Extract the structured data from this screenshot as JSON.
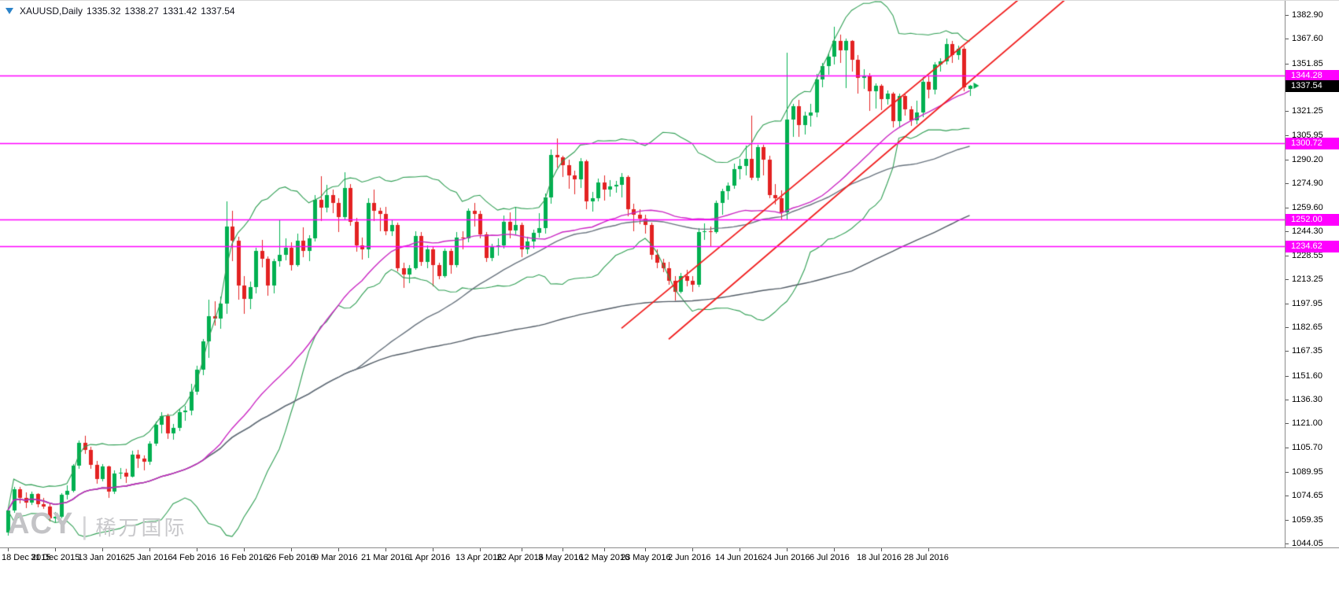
{
  "header": {
    "symbol": "XAUUSD,Daily",
    "open": "1335.32",
    "high": "1338.27",
    "low": "1331.42",
    "close": "1337.54"
  },
  "watermark": {
    "brand": "ACY",
    "separator": "|",
    "chinese": "稀万国际"
  },
  "axes": {
    "y_ticks": [
      "1382.90",
      "1367.60",
      "1351.85",
      "1321.25",
      "1305.95",
      "1290.20",
      "1274.90",
      "1259.60",
      "1244.30",
      "1228.55",
      "1213.25",
      "1197.95",
      "1182.65",
      "1167.35",
      "1151.60",
      "1136.30",
      "1121.00",
      "1105.70",
      "1089.95",
      "1074.65",
      "1059.35",
      "1044.05"
    ],
    "x_ticks": [
      {
        "label": "18 Dec 2015",
        "index": 0
      },
      {
        "label": "31 Dec 2015",
        "index": 8
      },
      {
        "label": "13 Jan 2016",
        "index": 16
      },
      {
        "label": "25 Jan 2016",
        "index": 24
      },
      {
        "label": "4 Feb 2016",
        "index": 32
      },
      {
        "label": "16 Feb 2016",
        "index": 40
      },
      {
        "label": "26 Feb 2016",
        "index": 48
      },
      {
        "label": "9 Mar 2016",
        "index": 56
      },
      {
        "label": "21 Mar 2016",
        "index": 64
      },
      {
        "label": "1 Apr 2016",
        "index": 72
      },
      {
        "label": "13 Apr 2016",
        "index": 80
      },
      {
        "label": "22 Apr 2016",
        "index": 87
      },
      {
        "label": "3 May 2016",
        "index": 94
      },
      {
        "label": "12 May 2016",
        "index": 101
      },
      {
        "label": "23 May 2016",
        "index": 108
      },
      {
        "label": "2 Jun 2016",
        "index": 116
      },
      {
        "label": "14 Jun 2016",
        "index": 124
      },
      {
        "label": "24 Jun 2016",
        "index": 132
      },
      {
        "label": "6 Jul 2016",
        "index": 140
      },
      {
        "label": "18 Jul 2016",
        "index": 148
      },
      {
        "label": "28 Jul 2016",
        "index": 156
      }
    ],
    "price_badges": [
      {
        "value": "1344.28",
        "price": 1344.28,
        "bg": "#FF00FF",
        "fg": "#FFFFFF",
        "name": "level-badge-1344"
      },
      {
        "value": "1337.54",
        "price": 1337.54,
        "bg": "#000000",
        "fg": "#FFFFFF",
        "name": "current-price-badge"
      },
      {
        "value": "1300.72",
        "price": 1300.72,
        "bg": "#FF00FF",
        "fg": "#FFFFFF",
        "name": "level-badge-1300"
      },
      {
        "value": "1252.00",
        "price": 1252.0,
        "bg": "#FF00FF",
        "fg": "#FFFFFF",
        "name": "level-badge-1252"
      },
      {
        "value": "1234.62",
        "price": 1234.62,
        "bg": "#FF00FF",
        "fg": "#FFFFFF",
        "name": "level-badge-1234"
      }
    ]
  },
  "chart_data": {
    "type": "candlestick",
    "symbol": "XAUUSD",
    "timeframe": "Daily",
    "title": "XAUUSD,Daily 1335.32 1338.27 1331.42 1337.54",
    "y_domain": [
      1041.5,
      1392.0
    ],
    "x_layout": {
      "start": 10,
      "step": 7.5,
      "body_width": 5
    },
    "colors": {
      "background": "#FFFFFF",
      "up": "#00B050",
      "down": "#E32222",
      "bollinger": "#2F9E53",
      "ma_magenta": "#CA27C3",
      "ma_gray_fast": "#68737E",
      "ma_gray_slow": "#525C66",
      "trend": "#F01D1D",
      "h_line": "#FF00FF",
      "axis_text": "#000000"
    },
    "indicators": {
      "bollinger": {
        "period": 20,
        "deviation": 2
      },
      "ma_magenta": {
        "type": "sma",
        "period": 34
      },
      "ma_gray_fast": {
        "type": "sma",
        "period": 60
      },
      "ma_gray_slow": {
        "type": "sma",
        "period": 144
      }
    },
    "trend_lines": [
      {
        "points": [
          [
            104,
            1182.0
          ],
          [
            195,
            1467.0
          ]
        ]
      },
      {
        "points": [
          [
            112,
            1175.0
          ],
          [
            195,
            1444.0
          ]
        ]
      }
    ],
    "h_lines": [
      {
        "price": 1344.28
      },
      {
        "price": 1300.72
      },
      {
        "price": 1252.0
      },
      {
        "price": 1234.62
      }
    ],
    "last_price_marker": {
      "price": 1337.54
    },
    "ohlc": [
      [
        1051.0,
        1066.8,
        1049.0,
        1065.2
      ],
      [
        1065.2,
        1080.5,
        1063.8,
        1078.6
      ],
      [
        1078.6,
        1080.2,
        1069.5,
        1073.3
      ],
      [
        1073.3,
        1076.8,
        1066.9,
        1070.1
      ],
      [
        1070.1,
        1077.2,
        1068.5,
        1075.6
      ],
      [
        1075.6,
        1076.4,
        1067.3,
        1069.2
      ],
      [
        1069.2,
        1073.1,
        1065.8,
        1067.7
      ],
      [
        1067.7,
        1069.8,
        1058.2,
        1060.4
      ],
      [
        1060.4,
        1064.3,
        1057.6,
        1061.3
      ],
      [
        1061.3,
        1076.2,
        1059.9,
        1075.1
      ],
      [
        1075.1,
        1081.3,
        1072.3,
        1077.9
      ],
      [
        1077.9,
        1094.8,
        1076.6,
        1093.9
      ],
      [
        1093.9,
        1110.2,
        1091.9,
        1108.8
      ],
      [
        1108.8,
        1113.1,
        1101.5,
        1104.2
      ],
      [
        1104.2,
        1106.3,
        1092.1,
        1094.3
      ],
      [
        1094.3,
        1096.9,
        1082.1,
        1085.6
      ],
      [
        1085.6,
        1095.1,
        1083.9,
        1093.4
      ],
      [
        1093.4,
        1094.2,
        1073.3,
        1077.4
      ],
      [
        1077.4,
        1091.0,
        1076.1,
        1088.7
      ],
      [
        1088.7,
        1092.5,
        1085.4,
        1089.4
      ],
      [
        1089.4,
        1091.8,
        1082.6,
        1087.1
      ],
      [
        1087.1,
        1103.4,
        1086.2,
        1101.2
      ],
      [
        1101.2,
        1104.1,
        1092.6,
        1098.3
      ],
      [
        1098.3,
        1100.4,
        1090.7,
        1096.6
      ],
      [
        1096.6,
        1109.7,
        1094.6,
        1108.2
      ],
      [
        1108.2,
        1122.4,
        1106.8,
        1120.3
      ],
      [
        1120.3,
        1128.1,
        1114.6,
        1125.6
      ],
      [
        1125.6,
        1127.3,
        1111.2,
        1114.4
      ],
      [
        1114.4,
        1120.7,
        1110.5,
        1118.1
      ],
      [
        1118.1,
        1130.4,
        1116.3,
        1128.2
      ],
      [
        1128.2,
        1132.1,
        1122.5,
        1129.1
      ],
      [
        1129.1,
        1146.4,
        1126.2,
        1141.4
      ],
      [
        1141.4,
        1157.9,
        1139.2,
        1155.3
      ],
      [
        1155.3,
        1175.0,
        1151.6,
        1173.6
      ],
      [
        1173.6,
        1200.6,
        1163.2,
        1189.6
      ],
      [
        1189.6,
        1199.1,
        1183.4,
        1188.4
      ],
      [
        1188.4,
        1202.2,
        1181.6,
        1197.6
      ],
      [
        1197.6,
        1263.5,
        1191.2,
        1247.3
      ],
      [
        1247.3,
        1257.5,
        1225.1,
        1238.4
      ],
      [
        1238.4,
        1240.6,
        1200.3,
        1209.6
      ],
      [
        1209.6,
        1215.6,
        1191.5,
        1201.1
      ],
      [
        1201.1,
        1211.9,
        1194.3,
        1208.4
      ],
      [
        1208.4,
        1233.6,
        1204.2,
        1231.4
      ],
      [
        1231.4,
        1238.9,
        1221.3,
        1226.6
      ],
      [
        1226.6,
        1228.2,
        1202.9,
        1209.4
      ],
      [
        1209.4,
        1226.4,
        1204.1,
        1225.1
      ],
      [
        1225.1,
        1251.2,
        1221.5,
        1229.3
      ],
      [
        1229.3,
        1239.6,
        1225.7,
        1233.7
      ],
      [
        1233.7,
        1237.4,
        1219.4,
        1222.4
      ],
      [
        1222.4,
        1242.7,
        1221.4,
        1238.3
      ],
      [
        1238.3,
        1246.7,
        1227.5,
        1231.6
      ],
      [
        1231.6,
        1241.8,
        1225.4,
        1239.6
      ],
      [
        1239.6,
        1267.4,
        1237.8,
        1264.3
      ],
      [
        1264.3,
        1279.6,
        1250.8,
        1259.4
      ],
      [
        1259.4,
        1274.2,
        1256.5,
        1267.3
      ],
      [
        1267.3,
        1270.8,
        1255.5,
        1262.4
      ],
      [
        1262.4,
        1265.4,
        1243.5,
        1253.2
      ],
      [
        1253.2,
        1282.2,
        1251.4,
        1271.9
      ],
      [
        1271.9,
        1274.3,
        1247.6,
        1250.4
      ],
      [
        1250.4,
        1252.6,
        1230.8,
        1235.3
      ],
      [
        1235.3,
        1240.0,
        1225.7,
        1232.6
      ],
      [
        1232.6,
        1265.3,
        1226.9,
        1262.3
      ],
      [
        1262.3,
        1270.9,
        1250.7,
        1257.4
      ],
      [
        1257.4,
        1259.5,
        1244.3,
        1255.3
      ],
      [
        1255.3,
        1260.1,
        1241.9,
        1244.2
      ],
      [
        1244.2,
        1251.9,
        1241.1,
        1248.4
      ],
      [
        1248.4,
        1249.8,
        1218.3,
        1220.4
      ],
      [
        1220.4,
        1224.0,
        1207.8,
        1216.4
      ],
      [
        1216.4,
        1222.5,
        1210.9,
        1220.3
      ],
      [
        1220.3,
        1244.1,
        1219.5,
        1241.3
      ],
      [
        1241.3,
        1243.9,
        1222.1,
        1224.6
      ],
      [
        1224.6,
        1235.0,
        1220.2,
        1232.4
      ],
      [
        1232.4,
        1233.9,
        1208.9,
        1222.5
      ],
      [
        1222.5,
        1223.9,
        1213.1,
        1215.5
      ],
      [
        1215.5,
        1233.1,
        1214.4,
        1231.4
      ],
      [
        1231.4,
        1232.9,
        1217.0,
        1222.6
      ],
      [
        1222.6,
        1243.7,
        1221.1,
        1240.4
      ],
      [
        1240.4,
        1244.2,
        1232.8,
        1239.9
      ],
      [
        1239.9,
        1259.0,
        1237.1,
        1257.4
      ],
      [
        1257.4,
        1262.5,
        1247.3,
        1255.1
      ],
      [
        1255.1,
        1257.1,
        1239.2,
        1242.4
      ],
      [
        1242.4,
        1243.9,
        1224.5,
        1227.3
      ],
      [
        1227.3,
        1236.0,
        1224.9,
        1233.9
      ],
      [
        1233.9,
        1239.5,
        1228.6,
        1235.1
      ],
      [
        1235.1,
        1254.2,
        1233.1,
        1250.4
      ],
      [
        1250.4,
        1256.5,
        1239.9,
        1244.6
      ],
      [
        1244.6,
        1259.7,
        1241.9,
        1248.4
      ],
      [
        1248.4,
        1249.9,
        1227.7,
        1232.4
      ],
      [
        1232.4,
        1240.6,
        1229.3,
        1237.6
      ],
      [
        1237.6,
        1245.1,
        1233.0,
        1243.4
      ],
      [
        1243.4,
        1255.9,
        1240.3,
        1246.1
      ],
      [
        1246.1,
        1268.5,
        1242.9,
        1266.1
      ],
      [
        1266.1,
        1296.8,
        1262.2,
        1293.2
      ],
      [
        1293.2,
        1303.6,
        1284.8,
        1291.4
      ],
      [
        1291.4,
        1292.9,
        1279.4,
        1286.6
      ],
      [
        1286.6,
        1290.1,
        1271.6,
        1280.1
      ],
      [
        1280.1,
        1283.1,
        1268.0,
        1277.4
      ],
      [
        1277.4,
        1290.9,
        1271.8,
        1288.9
      ],
      [
        1288.9,
        1289.9,
        1258.3,
        1263.5
      ],
      [
        1263.5,
        1269.4,
        1256.9,
        1265.4
      ],
      [
        1265.4,
        1277.8,
        1263.1,
        1275.6
      ],
      [
        1275.6,
        1279.9,
        1264.0,
        1271.1
      ],
      [
        1271.1,
        1277.0,
        1266.3,
        1272.9
      ],
      [
        1272.9,
        1276.5,
        1268.9,
        1274.1
      ],
      [
        1274.1,
        1281.6,
        1266.0,
        1279.1
      ],
      [
        1279.1,
        1279.9,
        1253.8,
        1258.4
      ],
      [
        1258.4,
        1262.1,
        1244.4,
        1254.6
      ],
      [
        1254.6,
        1258.4,
        1249.0,
        1252.4
      ],
      [
        1252.4,
        1254.9,
        1242.9,
        1248.4
      ],
      [
        1248.4,
        1249.9,
        1226.1,
        1229.1
      ],
      [
        1229.1,
        1232.5,
        1220.6,
        1224.1
      ],
      [
        1224.1,
        1226.4,
        1217.8,
        1220.4
      ],
      [
        1220.4,
        1224.5,
        1209.7,
        1212.6
      ],
      [
        1212.6,
        1215.4,
        1199.8,
        1205.4
      ],
      [
        1205.4,
        1217.5,
        1204.4,
        1215.3
      ],
      [
        1215.3,
        1219.3,
        1208.9,
        1212.4
      ],
      [
        1212.4,
        1215.6,
        1205.6,
        1210.1
      ],
      [
        1210.1,
        1246.4,
        1208.6,
        1243.6
      ],
      [
        1243.6,
        1249.5,
        1238.9,
        1244.4
      ],
      [
        1244.4,
        1247.4,
        1234.5,
        1243.9
      ],
      [
        1243.9,
        1263.8,
        1242.6,
        1262.3
      ],
      [
        1262.3,
        1271.5,
        1254.8,
        1269.9
      ],
      [
        1269.9,
        1275.7,
        1264.5,
        1273.4
      ],
      [
        1273.4,
        1287.6,
        1271.7,
        1283.9
      ],
      [
        1283.9,
        1290.6,
        1277.3,
        1285.9
      ],
      [
        1285.9,
        1299.0,
        1279.6,
        1290.4
      ],
      [
        1290.4,
        1318.5,
        1276.9,
        1278.4
      ],
      [
        1278.4,
        1299.9,
        1276.6,
        1298.4
      ],
      [
        1298.4,
        1299.8,
        1279.9,
        1290.2
      ],
      [
        1290.2,
        1292.4,
        1265.3,
        1267.4
      ],
      [
        1267.4,
        1274.6,
        1261.7,
        1265.4
      ],
      [
        1265.4,
        1270.5,
        1251.1,
        1256.4
      ],
      [
        1256.4,
        1358.5,
        1251.6,
        1315.6
      ],
      [
        1315.6,
        1326.0,
        1304.8,
        1324.4
      ],
      [
        1324.4,
        1328.6,
        1305.1,
        1312.4
      ],
      [
        1312.4,
        1320.9,
        1306.5,
        1318.4
      ],
      [
        1318.4,
        1325.9,
        1311.4,
        1320.6
      ],
      [
        1320.6,
        1344.9,
        1317.1,
        1341.4
      ],
      [
        1341.4,
        1352.4,
        1336.6,
        1349.9
      ],
      [
        1349.9,
        1358.9,
        1344.8,
        1356.1
      ],
      [
        1356.1,
        1375.2,
        1351.1,
        1366.4
      ],
      [
        1366.4,
        1370.5,
        1352.1,
        1360.4
      ],
      [
        1360.4,
        1368.0,
        1336.1,
        1366.1
      ],
      [
        1366.1,
        1366.9,
        1346.9,
        1354.4
      ],
      [
        1354.4,
        1357.0,
        1332.4,
        1342.6
      ],
      [
        1342.6,
        1347.9,
        1335.1,
        1343.4
      ],
      [
        1343.4,
        1345.6,
        1321.6,
        1334.1
      ],
      [
        1334.1,
        1339.0,
        1323.1,
        1337.4
      ],
      [
        1337.4,
        1338.5,
        1321.9,
        1328.9
      ],
      [
        1328.9,
        1334.4,
        1325.4,
        1332.4
      ],
      [
        1332.4,
        1333.4,
        1310.6,
        1314.9
      ],
      [
        1314.9,
        1332.4,
        1311.0,
        1330.9
      ],
      [
        1330.9,
        1331.9,
        1318.4,
        1322.4
      ],
      [
        1322.4,
        1324.5,
        1312.1,
        1315.4
      ],
      [
        1315.4,
        1328.1,
        1313.2,
        1320.6
      ],
      [
        1320.6,
        1342.9,
        1317.4,
        1340.1
      ],
      [
        1340.1,
        1344.2,
        1329.6,
        1334.9
      ],
      [
        1334.9,
        1352.6,
        1332.1,
        1350.9
      ],
      [
        1350.9,
        1355.4,
        1346.6,
        1353.4
      ],
      [
        1353.4,
        1367.6,
        1350.9,
        1364.4
      ],
      [
        1364.4,
        1366.4,
        1352.4,
        1357.4
      ],
      [
        1357.4,
        1363.4,
        1354.1,
        1361.4
      ],
      [
        1361.4,
        1362.6,
        1334.1,
        1336.4
      ],
      [
        1335.32,
        1338.27,
        1331.42,
        1337.54
      ]
    ]
  }
}
